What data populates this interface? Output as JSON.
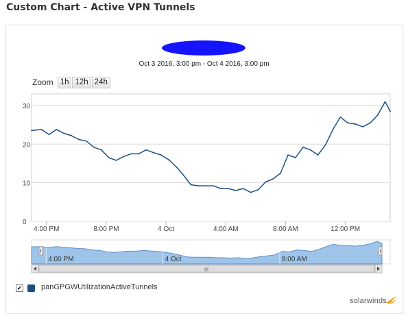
{
  "page_title": "Custom Chart - Active VPN Tunnels",
  "date_range": "Oct 3 2016, 3:00 pm - Oct 4 2016, 3:00 pm",
  "zoom": {
    "label": "Zoom",
    "buttons": [
      "1h",
      "12h",
      "24h"
    ]
  },
  "legend": {
    "checked": true,
    "series_name": "panGPGWUtilizationActiveTunnels",
    "color": "#1b4f86"
  },
  "brand": "solarwinds",
  "colors": {
    "line": "#1b4f86",
    "navigator_fill": "#9ec4ea",
    "navigator_line": "#5b8fc7",
    "grid": "#d8d8d8",
    "brand_accent": "#f39c12"
  },
  "navigator": {
    "tick_labels": [
      "4:00 PM",
      "4 Oct",
      "8:00 AM"
    ],
    "scrollbar_grip": "III"
  },
  "chart_data": {
    "type": "line",
    "title": "",
    "xlabel": "",
    "ylabel": "",
    "ylim": [
      0,
      33
    ],
    "y_ticks": [
      0,
      10,
      20,
      30
    ],
    "x_range": [
      "2016-10-03 15:00",
      "2016-10-04 15:00"
    ],
    "x_ticks": [
      {
        "t": "2016-10-03 16:00",
        "label": "4:00 PM"
      },
      {
        "t": "2016-10-03 20:00",
        "label": "8:00 PM"
      },
      {
        "t": "2016-10-04 00:00",
        "label": "4 Oct"
      },
      {
        "t": "2016-10-04 04:00",
        "label": "4:00 AM"
      },
      {
        "t": "2016-10-04 08:00",
        "label": "8:00 AM"
      },
      {
        "t": "2016-10-04 12:00",
        "label": "12:00 PM"
      }
    ],
    "grid": true,
    "legend_position": "bottom-left",
    "series": [
      {
        "name": "panGPGWUtilizationActiveTunnels",
        "points": [
          [
            "2016-10-03 15:00",
            23.5
          ],
          [
            "2016-10-03 15:40",
            23.8
          ],
          [
            "2016-10-03 16:10",
            22.5
          ],
          [
            "2016-10-03 16:40",
            23.8
          ],
          [
            "2016-10-03 17:10",
            22.8
          ],
          [
            "2016-10-03 17:40",
            22.2
          ],
          [
            "2016-10-03 18:10",
            21.2
          ],
          [
            "2016-10-03 18:40",
            20.8
          ],
          [
            "2016-10-03 19:10",
            19.2
          ],
          [
            "2016-10-03 19:40",
            18.5
          ],
          [
            "2016-10-03 20:10",
            16.5
          ],
          [
            "2016-10-03 20:40",
            15.8
          ],
          [
            "2016-10-03 21:10",
            16.8
          ],
          [
            "2016-10-03 21:40",
            17.5
          ],
          [
            "2016-10-03 22:10",
            17.5
          ],
          [
            "2016-10-03 22:40",
            18.5
          ],
          [
            "2016-10-03 23:10",
            17.8
          ],
          [
            "2016-10-03 23:40",
            17.2
          ],
          [
            "2016-10-04 00:10",
            16.0
          ],
          [
            "2016-10-04 00:40",
            14.2
          ],
          [
            "2016-10-04 01:10",
            12.0
          ],
          [
            "2016-10-04 01:40",
            9.5
          ],
          [
            "2016-10-04 02:10",
            9.2
          ],
          [
            "2016-10-04 02:40",
            9.2
          ],
          [
            "2016-10-04 03:10",
            9.2
          ],
          [
            "2016-10-04 03:40",
            8.5
          ],
          [
            "2016-10-04 04:10",
            8.5
          ],
          [
            "2016-10-04 04:40",
            8.0
          ],
          [
            "2016-10-04 05:10",
            8.5
          ],
          [
            "2016-10-04 05:40",
            7.5
          ],
          [
            "2016-10-04 06:10",
            8.2
          ],
          [
            "2016-10-04 06:40",
            10.2
          ],
          [
            "2016-10-04 07:10",
            11.0
          ],
          [
            "2016-10-04 07:40",
            12.5
          ],
          [
            "2016-10-04 08:10",
            17.2
          ],
          [
            "2016-10-04 08:40",
            16.5
          ],
          [
            "2016-10-04 09:10",
            19.2
          ],
          [
            "2016-10-04 09:40",
            18.5
          ],
          [
            "2016-10-04 10:10",
            17.2
          ],
          [
            "2016-10-04 10:40",
            19.8
          ],
          [
            "2016-10-04 11:10",
            23.8
          ],
          [
            "2016-10-04 11:40",
            27.0
          ],
          [
            "2016-10-04 12:10",
            25.5
          ],
          [
            "2016-10-04 12:40",
            25.2
          ],
          [
            "2016-10-04 13:10",
            24.5
          ],
          [
            "2016-10-04 13:40",
            25.5
          ],
          [
            "2016-10-04 14:10",
            27.5
          ],
          [
            "2016-10-04 14:40",
            31.0
          ],
          [
            "2016-10-04 15:00",
            28.5
          ]
        ]
      }
    ]
  }
}
